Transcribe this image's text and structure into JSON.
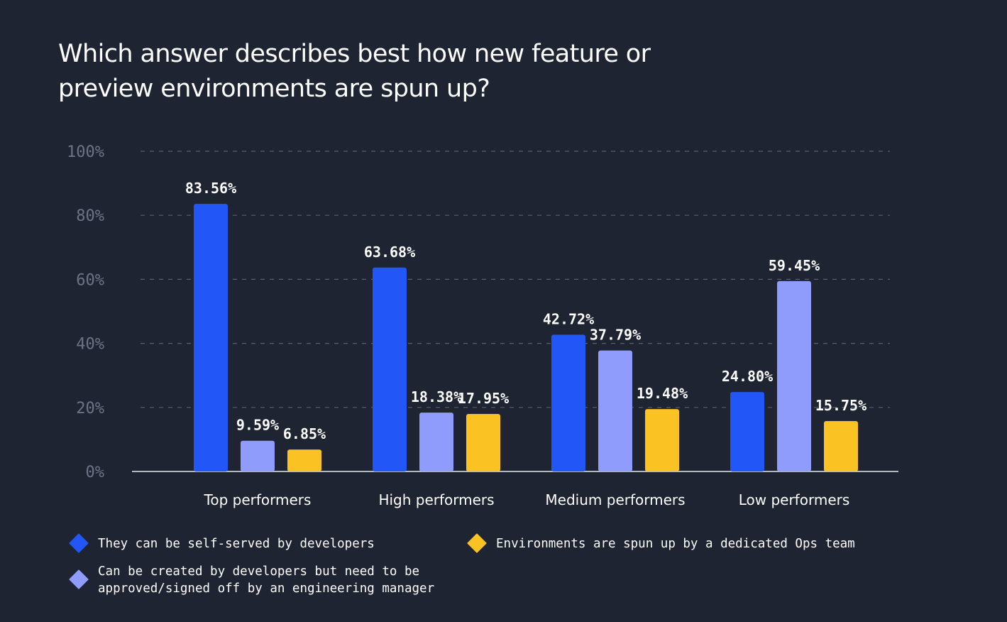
{
  "chart_data": {
    "type": "bar",
    "title": "Which answer describes best how new feature or preview environments are spun up?",
    "categories": [
      "Top performers",
      "High performers",
      "Medium performers",
      "Low performers"
    ],
    "series": [
      {
        "name": "They can be self-served by developers",
        "color": "#2356f6",
        "values": [
          83.56,
          63.68,
          42.72,
          24.8
        ],
        "labels": [
          "83.56%",
          "63.68%",
          "42.72%",
          "24.80%"
        ]
      },
      {
        "name": "Can be created by developers but need to be approved/signed off by an engineering manager",
        "legend_lines": [
          "Can be created by developers but need to be",
          "approved/signed off by an engineering manager"
        ],
        "color": "#8f9cfb",
        "values": [
          9.59,
          18.38,
          37.79,
          59.45
        ],
        "labels": [
          "9.59%",
          "18.38%",
          "37.79%",
          "59.45%"
        ]
      },
      {
        "name": "Environments are spun up by a dedicated Ops team",
        "color": "#fbc224",
        "values": [
          6.85,
          17.95,
          19.48,
          15.75
        ],
        "labels": [
          "6.85%",
          "17.95%",
          "19.48%",
          "15.75%"
        ]
      }
    ],
    "yticks": [
      "0%",
      "20%",
      "40%",
      "60%",
      "80%",
      "100%"
    ],
    "ylim": [
      0,
      100
    ],
    "xlabel": "",
    "ylabel": "",
    "grid": true,
    "legend_position": "bottom"
  }
}
